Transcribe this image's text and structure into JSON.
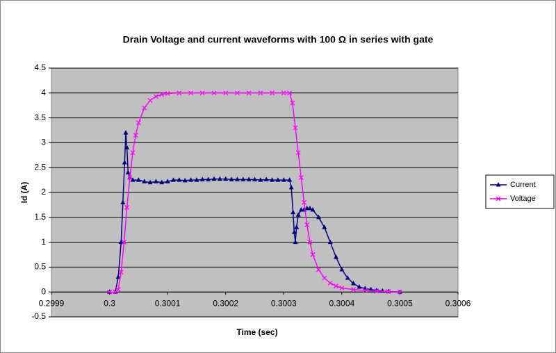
{
  "chart_data": {
    "type": "scatter",
    "title": "Drain Voltage and current waveforms with 100 Ω in series with gate",
    "x_label": "Time (sec)",
    "y_label": "Id (A)",
    "xlim": [
      0.2999,
      0.3006
    ],
    "xticks": [
      0.2999,
      0.3,
      0.3001,
      0.3002,
      0.3003,
      0.3004,
      0.3005,
      0.3006
    ],
    "ylim": [
      -0.5,
      4.5
    ],
    "yticks": [
      -0.5,
      0,
      0.5,
      1,
      1.5,
      2,
      2.5,
      3,
      3.5,
      4,
      4.5
    ],
    "grid": true,
    "legend": "right",
    "series": [
      {
        "name": "Current",
        "color": "#000080",
        "marker": "triangle",
        "x": [
          0.3,
          0.30001,
          0.300015,
          0.30002,
          0.300023,
          0.300026,
          0.300028,
          0.30003,
          0.300032,
          0.300035,
          0.30004,
          0.30005,
          0.30006,
          0.30007,
          0.30008,
          0.30009,
          0.3001,
          0.30011,
          0.30012,
          0.30013,
          0.30014,
          0.30015,
          0.30016,
          0.30017,
          0.30018,
          0.30019,
          0.3002,
          0.30021,
          0.30022,
          0.30023,
          0.30024,
          0.30025,
          0.30026,
          0.30027,
          0.30028,
          0.30029,
          0.3003,
          0.30031,
          0.300313,
          0.300316,
          0.300318,
          0.30032,
          0.300322,
          0.300325,
          0.30033,
          0.300335,
          0.30034,
          0.300345,
          0.30035,
          0.30036,
          0.30037,
          0.30038,
          0.30039,
          0.3004,
          0.30041,
          0.30042,
          0.30043,
          0.30044,
          0.30045,
          0.30046,
          0.30047,
          0.30048,
          0.3005
        ],
        "values": [
          0,
          0,
          0.3,
          1.0,
          1.8,
          2.6,
          3.2,
          2.9,
          2.4,
          2.3,
          2.25,
          2.25,
          2.22,
          2.2,
          2.22,
          2.2,
          2.22,
          2.25,
          2.25,
          2.24,
          2.25,
          2.25,
          2.26,
          2.26,
          2.27,
          2.27,
          2.27,
          2.26,
          2.26,
          2.26,
          2.26,
          2.26,
          2.25,
          2.26,
          2.25,
          2.25,
          2.25,
          2.25,
          2.1,
          1.6,
          1.2,
          1.0,
          1.3,
          1.55,
          1.65,
          1.65,
          1.68,
          1.68,
          1.65,
          1.5,
          1.3,
          1.0,
          0.7,
          0.45,
          0.28,
          0.17,
          0.1,
          0.07,
          0.05,
          0.03,
          0.02,
          0.01,
          0
        ]
      },
      {
        "name": "Voltage",
        "color": "#ff00ff",
        "marker": "x",
        "x": [
          0.3,
          0.30001,
          0.300015,
          0.30002,
          0.300025,
          0.30003,
          0.300035,
          0.30004,
          0.300045,
          0.30005,
          0.30006,
          0.30007,
          0.30008,
          0.30009,
          0.3001,
          0.30012,
          0.30014,
          0.30016,
          0.30018,
          0.3002,
          0.30022,
          0.30024,
          0.30026,
          0.30028,
          0.3003,
          0.30031,
          0.300315,
          0.30032,
          0.300325,
          0.30033,
          0.300335,
          0.30034,
          0.300345,
          0.30035,
          0.30036,
          0.30037,
          0.30038,
          0.30039,
          0.3004,
          0.30042,
          0.30044,
          0.30046,
          0.30048,
          0.3005
        ],
        "values": [
          0,
          0,
          0.05,
          0.4,
          1.0,
          1.7,
          2.3,
          2.8,
          3.15,
          3.4,
          3.7,
          3.85,
          3.93,
          3.97,
          3.99,
          4.0,
          4.0,
          4.0,
          4.0,
          4.0,
          4.0,
          4.0,
          4.0,
          4.0,
          4.0,
          4.0,
          3.8,
          3.3,
          2.8,
          2.3,
          1.8,
          1.35,
          1.0,
          0.75,
          0.45,
          0.28,
          0.18,
          0.12,
          0.08,
          0.05,
          0.03,
          0.02,
          0.01,
          0
        ]
      }
    ]
  }
}
